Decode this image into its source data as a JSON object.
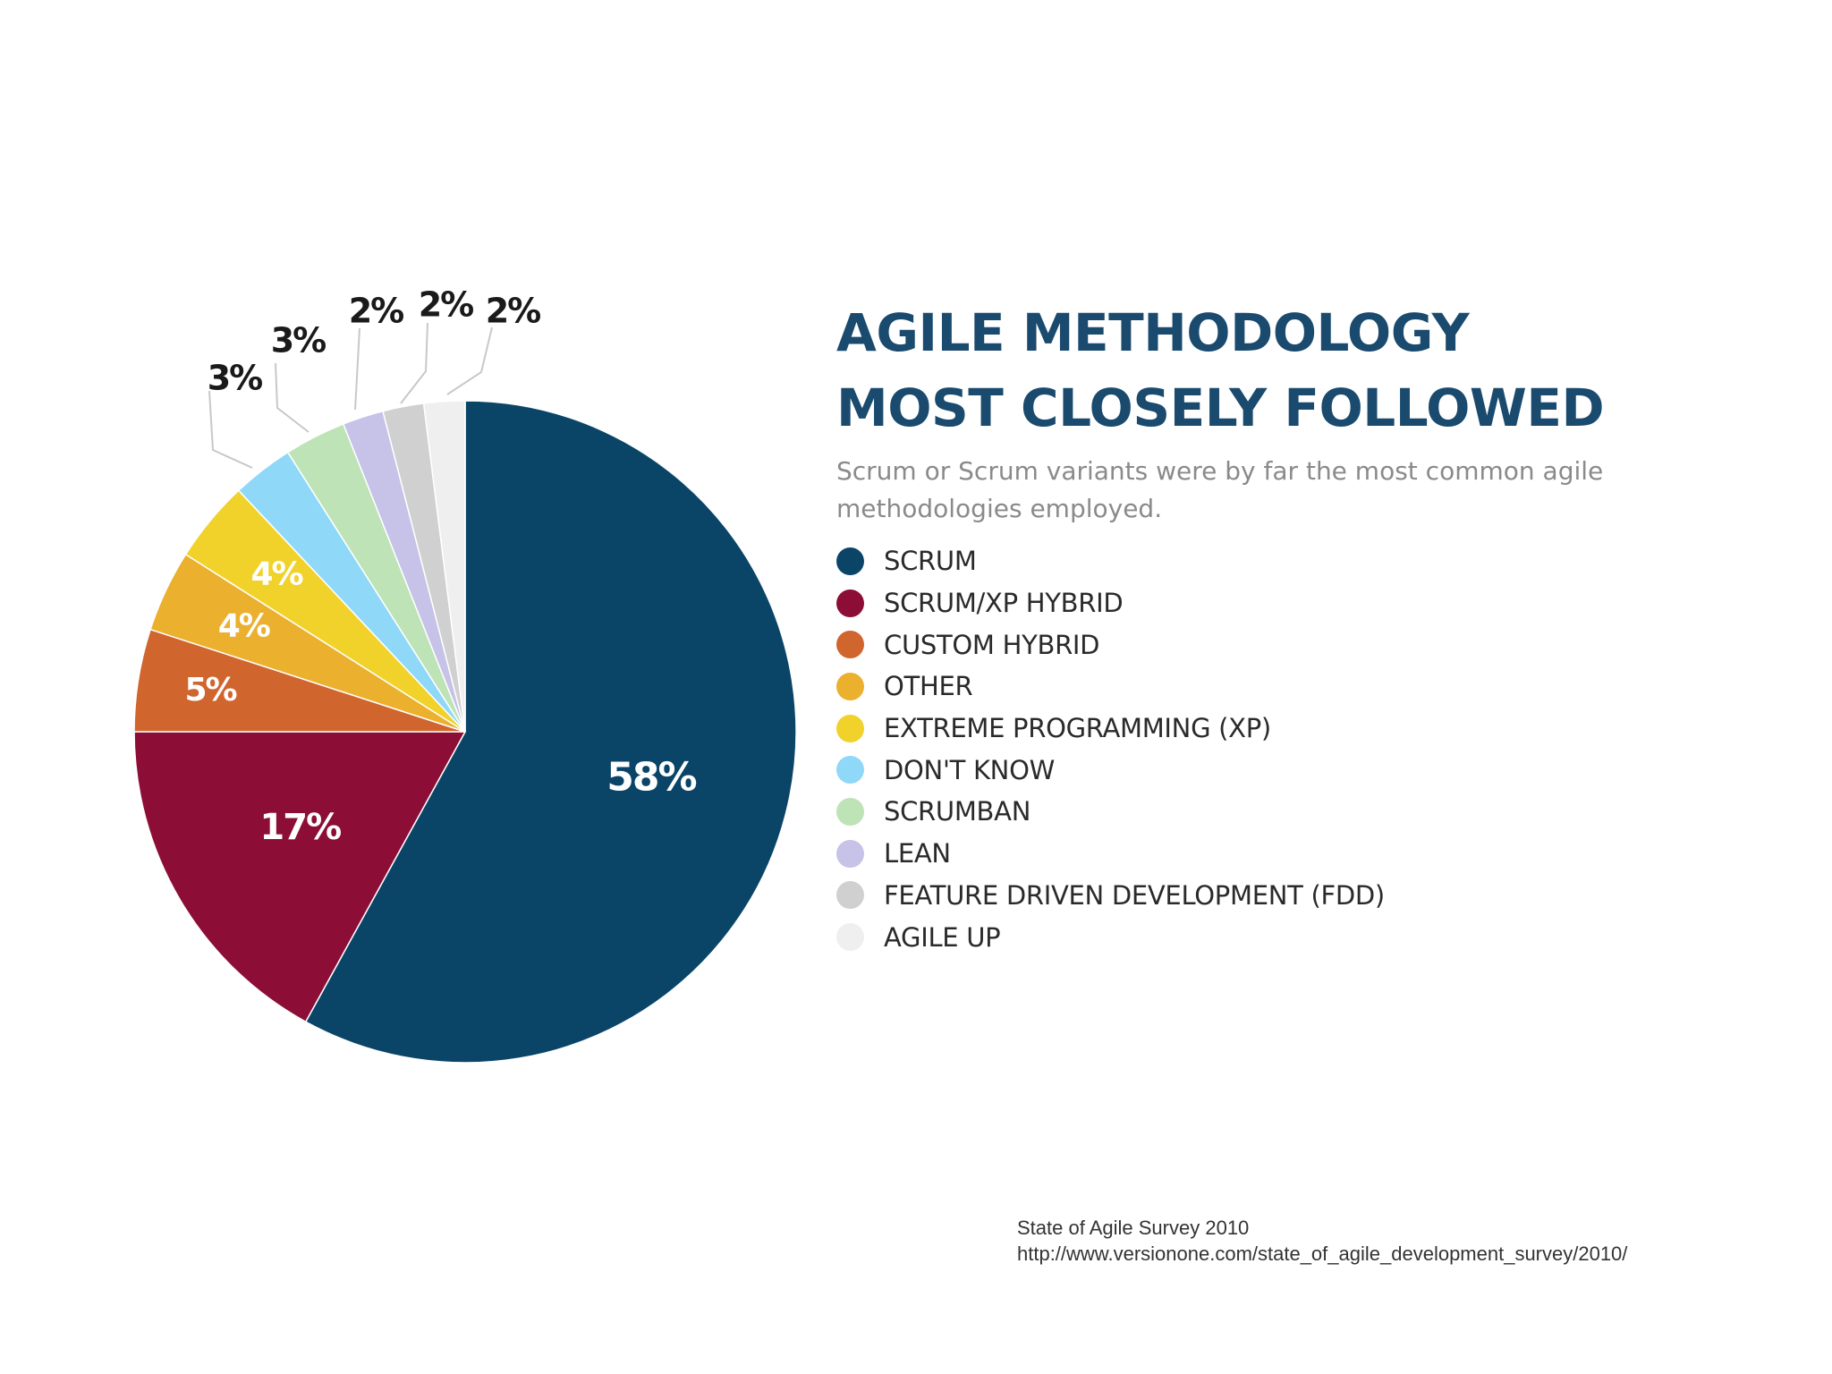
{
  "chart_data": {
    "type": "pie",
    "title": "AGILE METHODOLOGY MOST CLOSELY FOLLOWED",
    "subtitle": "Scrum or Scrum variants were by far the most common agile methodologies employed.",
    "categories": [
      "SCRUM",
      "SCRUM/XP HYBRID",
      "CUSTOM HYBRID",
      "OTHER",
      "EXTREME PROGRAMMING (XP)",
      "DON'T KNOW",
      "SCRUMBAN",
      "LEAN",
      "FEATURE DRIVEN DEVELOPMENT (FDD)",
      "AGILE UP"
    ],
    "values": [
      58,
      17,
      5,
      4,
      4,
      3,
      3,
      2,
      2,
      2
    ],
    "data_labels": [
      "58%",
      "17%",
      "5%",
      "4%",
      "4%",
      "3%",
      "3%",
      "2%",
      "2%",
      "2%"
    ],
    "colors": [
      "#0a4568",
      "#8c0d36",
      "#d0652d",
      "#eab02e",
      "#f0d22a",
      "#8fd8f8",
      "#bde3b6",
      "#c6c2e8",
      "#d0d0d0",
      "#efefef"
    ],
    "legend_placement": "right",
    "start_angle": "12 o'clock",
    "direction": "clockwise"
  },
  "source": {
    "line1": "State of Agile Survey 2010",
    "line2": "http://www.versionone.com/state_of_agile_development_survey/2010/"
  }
}
